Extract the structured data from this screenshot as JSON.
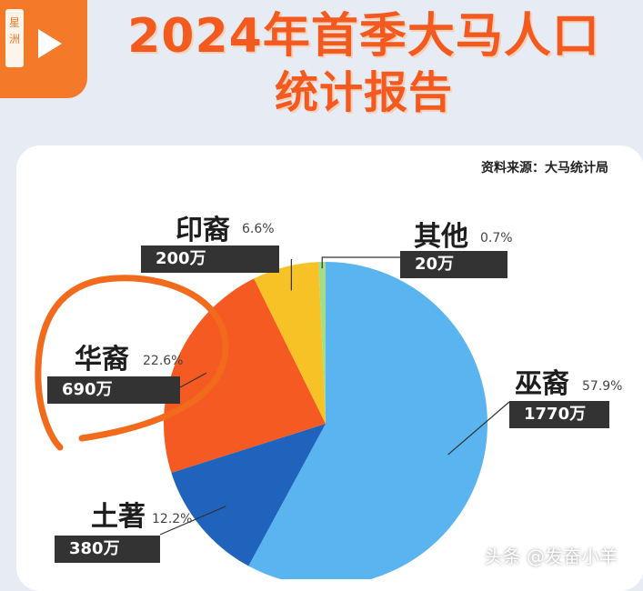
{
  "logo": {
    "text": "星洲"
  },
  "title_line1": "2024年首季大马人口",
  "title_line2": "统计报告",
  "source": "资料来源：大马统计局",
  "watermark": "头条 @发奋小羊",
  "chart_data": {
    "type": "pie",
    "title": "2024年首季大马人口统计报告",
    "slices": [
      {
        "name": "巫裔",
        "percent": 57.9,
        "value_label": "1770万",
        "value": 1770,
        "color": "#5ab4ef"
      },
      {
        "name": "土著",
        "percent": 12.2,
        "value_label": "380万",
        "value": 380,
        "color": "#1f63bd"
      },
      {
        "name": "华裔",
        "percent": 22.6,
        "value_label": "690万",
        "value": 690,
        "color": "#f45a21"
      },
      {
        "name": "印裔",
        "percent": 6.6,
        "value_label": "200万",
        "value": 200,
        "color": "#f7c225"
      },
      {
        "name": "其他",
        "percent": 0.7,
        "value_label": "20万",
        "value": 20,
        "color": "#a4dc8a"
      }
    ],
    "start_angle_deg": 0,
    "direction": "clockwise"
  }
}
